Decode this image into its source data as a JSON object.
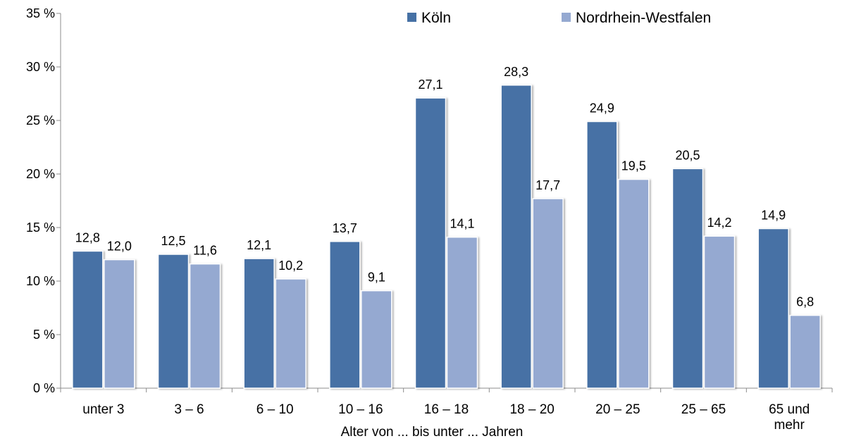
{
  "chart_data": {
    "type": "bar",
    "categories": [
      "unter 3",
      "3 –  6",
      "6 – 10",
      "10 – 16",
      "16 – 18",
      "18 – 20",
      "20 – 25",
      "25 – 65",
      "65 und mehr"
    ],
    "category_lines": [
      [
        "unter 3"
      ],
      [
        "3 –  6"
      ],
      [
        "6 – 10"
      ],
      [
        "10 – 16"
      ],
      [
        "16 – 18"
      ],
      [
        "18 – 20"
      ],
      [
        "20 – 25"
      ],
      [
        "25 – 65"
      ],
      [
        "65 und",
        "mehr"
      ]
    ],
    "series": [
      {
        "name": "Köln",
        "color": "#4671A5",
        "values": [
          12.8,
          12.5,
          12.1,
          13.7,
          27.1,
          28.3,
          24.9,
          20.5,
          14.9
        ],
        "labels": [
          "12,8",
          "12,5",
          "12,1",
          "13,7",
          "27,1",
          "28,3",
          "24,9",
          "20,5",
          "14,9"
        ]
      },
      {
        "name": "Nordrhein-Westfalen",
        "color": "#95A9D1",
        "values": [
          12.0,
          11.6,
          10.2,
          9.1,
          14.1,
          17.7,
          19.5,
          14.2,
          6.8
        ],
        "labels": [
          "12,0",
          "11,6",
          "10,2",
          "9,1",
          "14,1",
          "17,7",
          "19,5",
          "14,2",
          "6,8"
        ]
      }
    ],
    "xlabel": "Alter von ... bis unter ... Jahren",
    "ylabel": "",
    "ylim": [
      0,
      35
    ],
    "yticks": [
      0,
      5,
      10,
      15,
      20,
      25,
      30,
      35
    ],
    "ytick_labels": [
      "0 %",
      "5 %",
      "10 %",
      "15 %",
      "20 %",
      "25 %",
      "30 %",
      "35 %"
    ],
    "grid": false,
    "legend_position": "top-right"
  }
}
